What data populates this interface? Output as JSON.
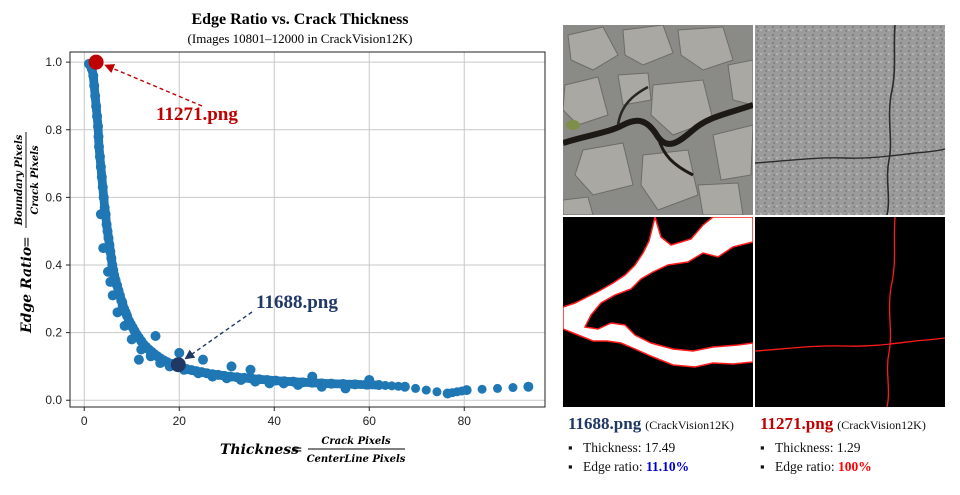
{
  "chart_data": {
    "type": "scatter",
    "title": "Edge Ratio vs. Crack Thickness",
    "subtitle": "(Images 10801–12000 in CrackVision12K)",
    "xlabel": {
      "lhs": "Thickness",
      "num": "Crack Pixels",
      "den": "CenterLine Pixels"
    },
    "ylabel": {
      "lhs": "Edge Ratio",
      "num": "Boundary Pixels",
      "den": "Crack Pixels"
    },
    "xlim": [
      -3,
      97
    ],
    "ylim": [
      -0.02,
      1.03
    ],
    "x_ticks": [
      0,
      20,
      40,
      60,
      80
    ],
    "y_ticks": [
      0.0,
      0.2,
      0.4,
      0.6,
      0.8,
      1.0
    ],
    "x_tick_labels": [
      "0",
      "20",
      "40",
      "60",
      "80"
    ],
    "y_tick_labels": [
      "0.0",
      "0.2",
      "0.4",
      "0.6",
      "0.8",
      "1.0"
    ],
    "grid": true,
    "point_color": "#1f77b4",
    "series": [
      {
        "x": [
          1.0,
          1.3,
          1.6,
          1.9,
          2.1,
          2.3,
          2.5,
          2.7,
          2.9,
          3.0,
          3.1,
          3.3,
          3.5,
          3.7,
          3.9,
          4.1,
          4.3,
          4.5,
          4.7,
          4.9,
          5.1,
          5.3,
          5.5,
          5.7,
          5.9,
          6.1,
          6.3,
          6.6,
          6.9,
          7.2,
          7.5,
          7.8,
          8.1,
          8.4,
          8.7,
          9.0,
          9.4,
          9.8,
          10.2,
          10.6,
          11.0,
          11.5,
          12.0,
          12.5,
          13.0,
          13.6,
          14.2,
          14.8,
          15.4,
          16.0,
          16.7,
          17.4,
          18.2,
          19.0,
          19.8,
          20.7,
          21.6,
          22.6,
          23.6,
          24.7,
          25.8,
          27.0,
          28.2,
          29.5,
          30.8,
          32.2,
          33.7,
          35.2,
          36.8,
          38.5,
          40.3,
          42.1,
          44.0,
          46.0,
          48.0,
          50.0,
          52.0,
          54.5,
          57.0,
          59.5,
          62.0,
          67.5,
          76.5,
          80.5,
          93.5,
          4.0,
          5.0,
          6.0,
          7.0,
          8.5,
          10.0,
          12.0,
          14.0,
          16.0,
          18.0,
          21.0,
          24.0,
          27.0,
          30.0,
          33.0,
          36.0,
          39.0,
          42.0,
          45.0,
          50.0,
          55.0,
          3.5,
          5.5,
          8.0,
          11.5,
          15.0,
          20.0,
          25.0,
          31.0,
          35.0,
          48.0,
          60.0
        ],
        "y": [
          0.995,
          0.99,
          0.98,
          0.96,
          0.93,
          0.9,
          0.87,
          0.84,
          0.81,
          0.78,
          0.75,
          0.72,
          0.69,
          0.66,
          0.63,
          0.6,
          0.57,
          0.55,
          0.52,
          0.5,
          0.48,
          0.46,
          0.44,
          0.42,
          0.4,
          0.385,
          0.37,
          0.355,
          0.34,
          0.325,
          0.31,
          0.295,
          0.28,
          0.27,
          0.26,
          0.25,
          0.235,
          0.225,
          0.215,
          0.205,
          0.195,
          0.185,
          0.175,
          0.165,
          0.158,
          0.15,
          0.143,
          0.136,
          0.13,
          0.124,
          0.118,
          0.113,
          0.108,
          0.104,
          0.1,
          0.096,
          0.092,
          0.089,
          0.086,
          0.083,
          0.08,
          0.077,
          0.075,
          0.072,
          0.07,
          0.068,
          0.066,
          0.064,
          0.062,
          0.06,
          0.058,
          0.056,
          0.055,
          0.053,
          0.052,
          0.05,
          0.049,
          0.048,
          0.047,
          0.046,
          0.045,
          0.04,
          0.02,
          0.03,
          0.04,
          0.45,
          0.38,
          0.31,
          0.26,
          0.22,
          0.18,
          0.15,
          0.13,
          0.11,
          0.1,
          0.09,
          0.08,
          0.07,
          0.065,
          0.06,
          0.055,
          0.05,
          0.05,
          0.045,
          0.04,
          0.035,
          0.55,
          0.35,
          0.29,
          0.12,
          0.19,
          0.14,
          0.12,
          0.1,
          0.09,
          0.07,
          0.06
        ]
      }
    ],
    "annotations": [
      {
        "label": "11271.png",
        "x": 2.5,
        "y": 1.0,
        "color": "#c00000"
      },
      {
        "label": "11688.png",
        "x": 19.8,
        "y": 0.105,
        "color": "#1f3864"
      }
    ]
  },
  "panels": {
    "left": {
      "name": "11688.png",
      "source": "(CrackVision12K)",
      "thickness_label": "Thickness: ",
      "thickness": "17.49",
      "edge_label": "Edge ratio: ",
      "edge_ratio": "11.10%",
      "name_color": "#1f3864",
      "value_color": "#0000cc"
    },
    "right": {
      "name": "11271.png",
      "source": "(CrackVision12K)",
      "thickness_label": "Thickness: ",
      "thickness": "1.29",
      "edge_label": "Edge ratio: ",
      "edge_ratio": "100%",
      "name_color": "#c00000",
      "value_color": "#ff0000"
    }
  }
}
